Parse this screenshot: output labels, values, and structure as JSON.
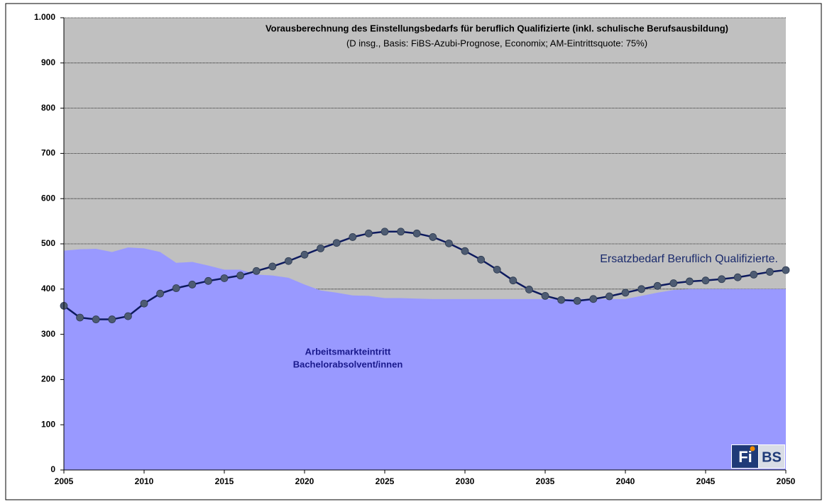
{
  "chart_data": {
    "type": "line",
    "title": "Vorausberechnung des Einstellungsbedarfs für beruflich Qualifizierte (inkl. schulische Berufsausbildung)",
    "subtitle": "(D insg., Basis: FiBS-Azubi-Prognose, Economix; AM-Eintrittsquote: 75%)",
    "x": [
      2005,
      2006,
      2007,
      2008,
      2009,
      2010,
      2011,
      2012,
      2013,
      2014,
      2015,
      2016,
      2017,
      2018,
      2019,
      2020,
      2021,
      2022,
      2023,
      2024,
      2025,
      2026,
      2027,
      2028,
      2029,
      2030,
      2031,
      2032,
      2033,
      2034,
      2035,
      2036,
      2037,
      2038,
      2039,
      2040,
      2041,
      2042,
      2043,
      2044,
      2045,
      2046,
      2047,
      2048,
      2049,
      2050
    ],
    "series": [
      {
        "name": [
          "Arbeitsmarkteintritt",
          "Bachelorabsolvent/innen"
        ],
        "type": "area",
        "color": "#9999ff",
        "values": [
          485,
          488,
          489,
          482,
          492,
          490,
          482,
          458,
          460,
          452,
          443,
          443,
          432,
          430,
          425,
          410,
          397,
          392,
          386,
          385,
          380,
          380,
          379,
          378,
          378,
          378,
          378,
          378,
          378,
          378,
          378,
          378,
          378,
          378,
          378,
          378,
          385,
          392,
          398,
          400,
          400,
          400,
          400,
          400,
          400,
          400
        ]
      },
      {
        "name": "Ersatzbedarf Beruflich Qualifizierte.",
        "type": "line",
        "color": "#0d1a5e",
        "marker_color": "#4d5b72",
        "values": [
          363,
          337,
          333,
          333,
          340,
          368,
          390,
          402,
          410,
          418,
          424,
          430,
          440,
          450,
          462,
          476,
          490,
          502,
          515,
          523,
          527,
          527,
          523,
          515,
          501,
          484,
          465,
          443,
          419,
          399,
          385,
          376,
          374,
          378,
          384,
          392,
          400,
          407,
          413,
          417,
          419,
          422,
          426,
          432,
          438,
          442
        ]
      }
    ],
    "xlim": [
      2005,
      2050
    ],
    "xticks": [
      2005,
      2010,
      2015,
      2020,
      2025,
      2030,
      2035,
      2040,
      2045,
      2050
    ],
    "ylim": [
      0,
      1000
    ],
    "yticks": [
      0,
      100,
      200,
      300,
      400,
      500,
      600,
      700,
      800,
      900,
      {
        "value": 1000,
        "label": "1.000"
      }
    ],
    "grid": true,
    "plot_background": "#c0c0c0",
    "logo": [
      "Fi",
      "BS"
    ]
  }
}
